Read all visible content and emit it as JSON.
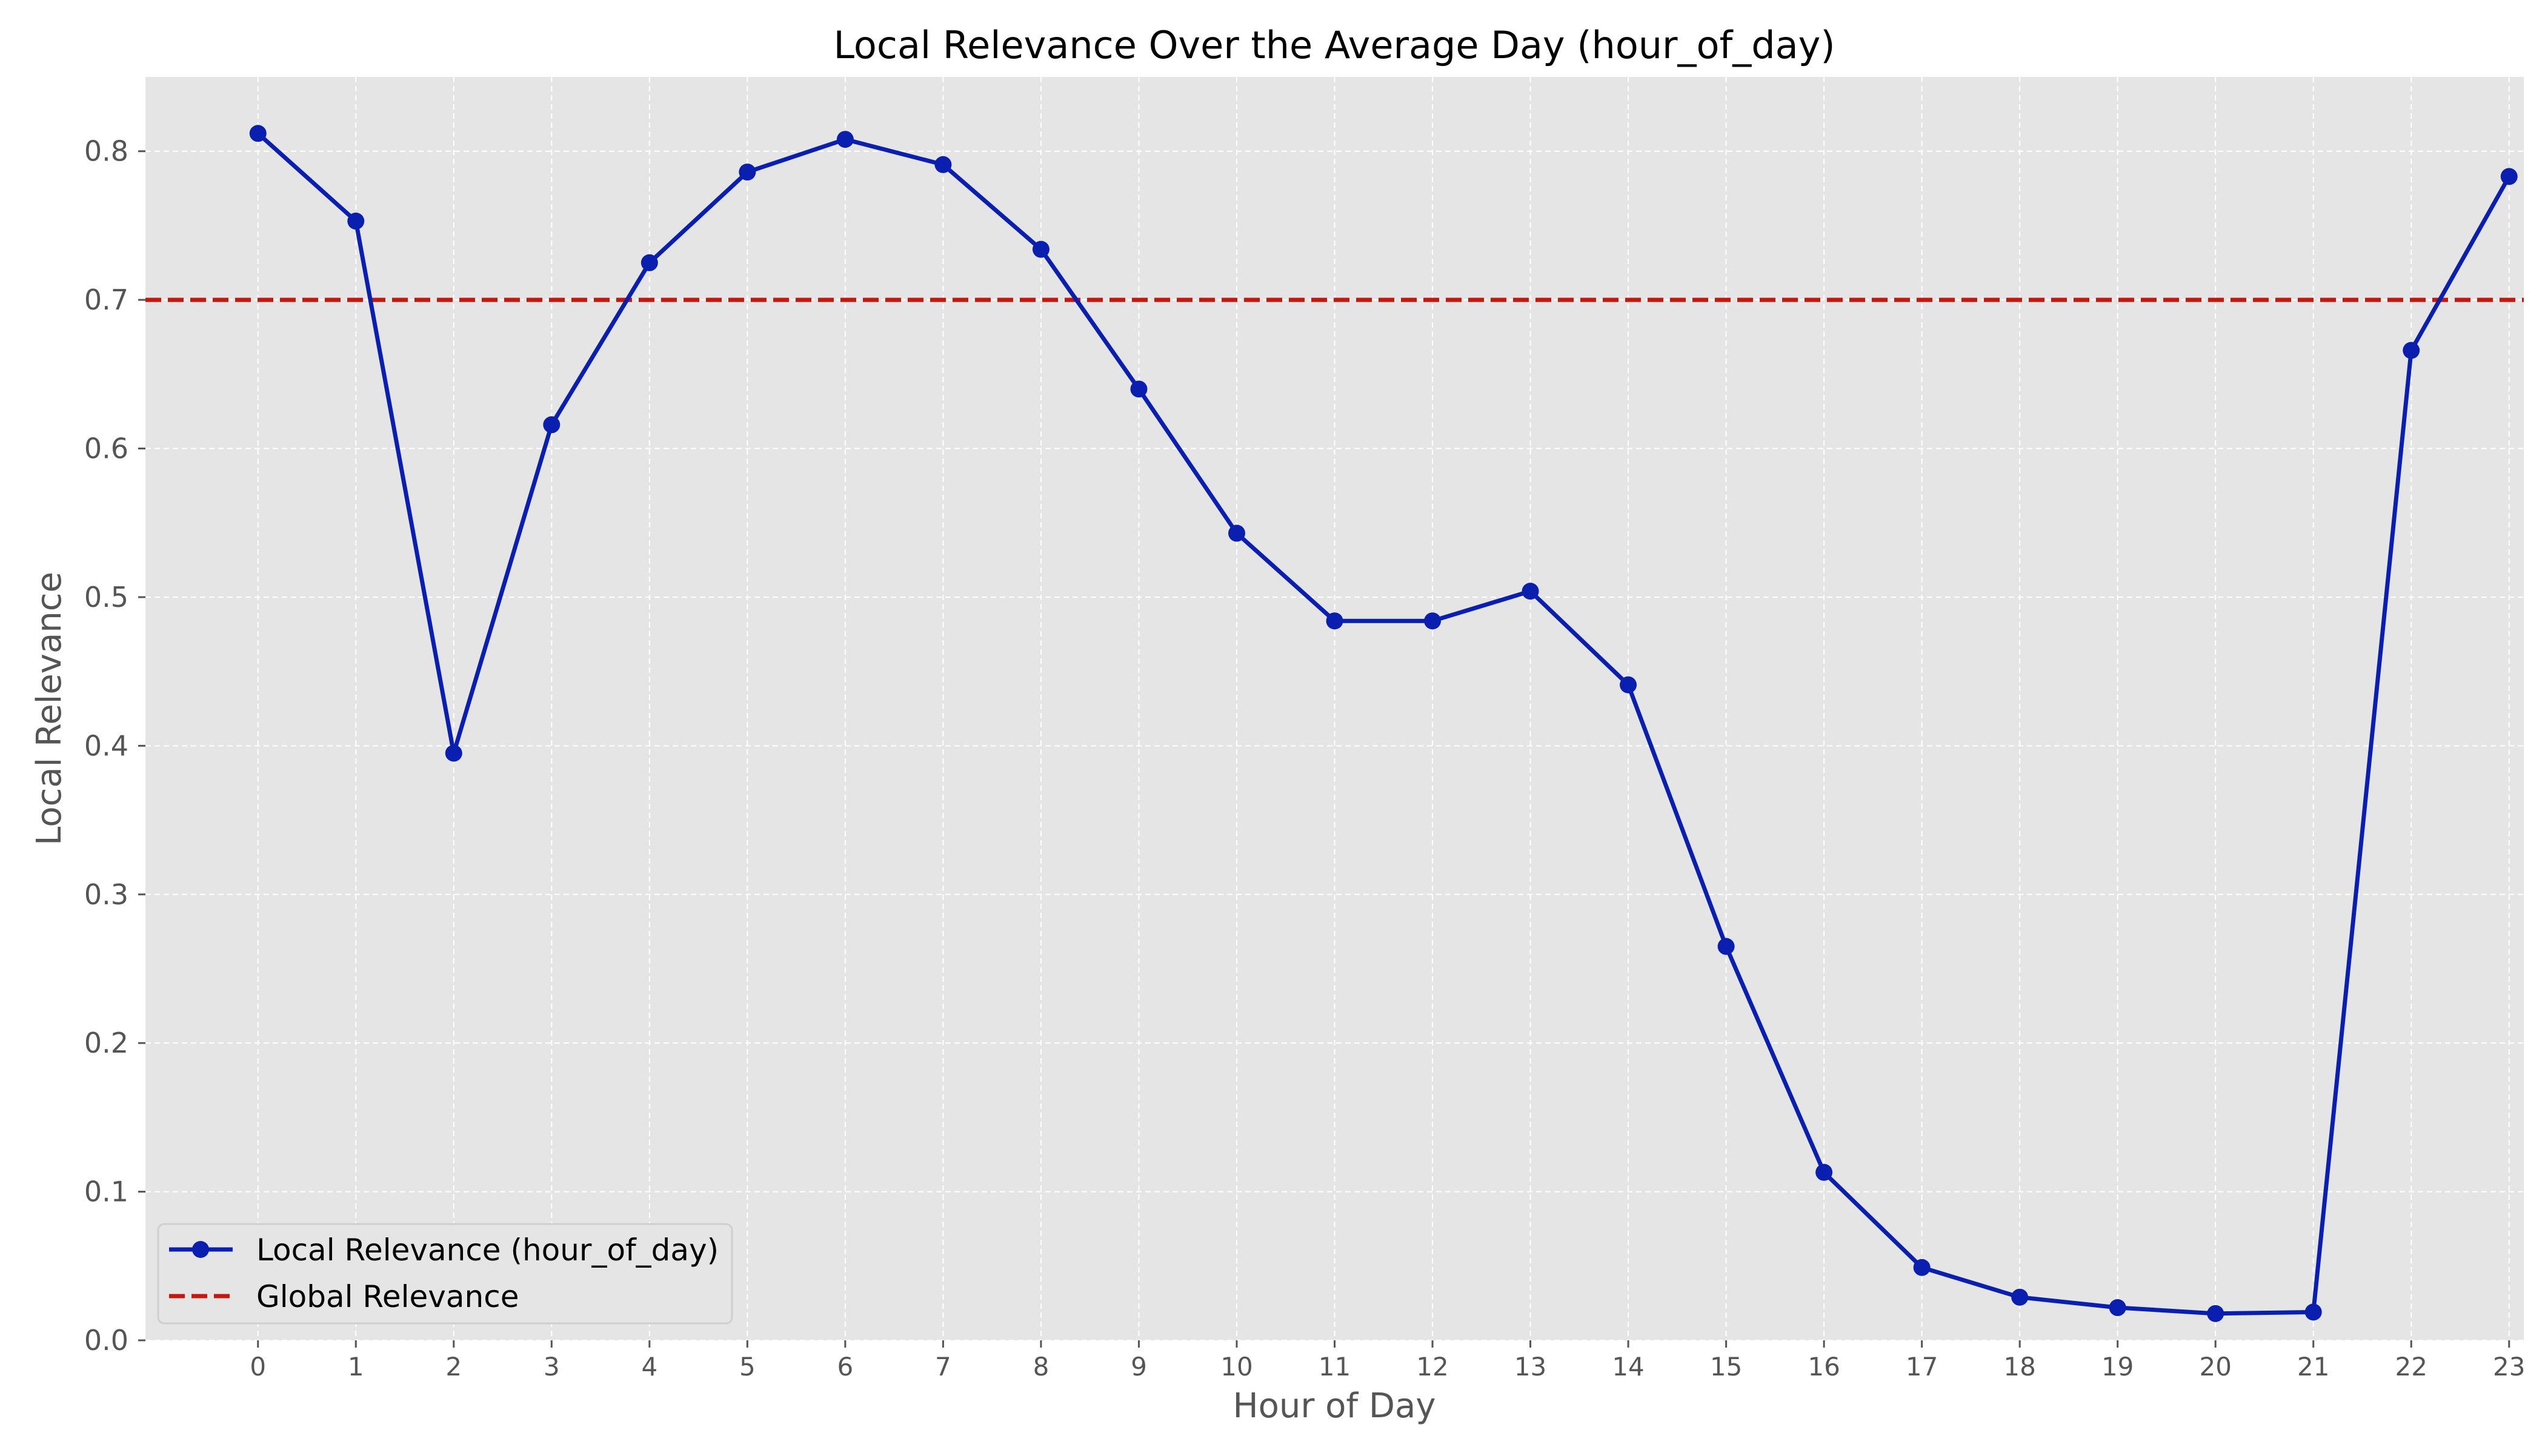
{
  "chart_data": {
    "type": "line",
    "title": "Local Relevance Over the Average Day (hour_of_day)",
    "xlabel": "Hour of Day",
    "ylabel": "Local Relevance",
    "x": [
      0,
      1,
      2,
      3,
      4,
      5,
      6,
      7,
      8,
      9,
      10,
      11,
      12,
      13,
      14,
      15,
      16,
      17,
      18,
      19,
      20,
      21,
      22,
      23
    ],
    "xticks": [
      "0",
      "1",
      "2",
      "3",
      "4",
      "5",
      "6",
      "7",
      "8",
      "9",
      "10",
      "11",
      "12",
      "13",
      "14",
      "15",
      "16",
      "17",
      "18",
      "19",
      "20",
      "21",
      "22",
      "23"
    ],
    "yticks": [
      "0.0",
      "0.1",
      "0.2",
      "0.3",
      "0.4",
      "0.5",
      "0.6",
      "0.7",
      "0.8"
    ],
    "xlim": [
      -1.15,
      23.15
    ],
    "ylim": [
      0.0,
      0.85
    ],
    "grid": true,
    "legend_position": "lower-left",
    "series": [
      {
        "name": "Local Relevance (hour_of_day)",
        "color": "#0a1fb0",
        "style": "line-with-markers",
        "values": [
          0.812,
          0.753,
          0.395,
          0.616,
          0.725,
          0.786,
          0.808,
          0.791,
          0.734,
          0.64,
          0.543,
          0.484,
          0.484,
          0.504,
          0.441,
          0.265,
          0.113,
          0.049,
          0.029,
          0.022,
          0.018,
          0.019,
          0.666,
          0.783
        ]
      }
    ],
    "reference_lines": [
      {
        "name": "Global Relevance",
        "y": 0.7,
        "color": "#c4170d",
        "style": "dashed"
      }
    ]
  },
  "colors": {
    "plot_background": "#e5e5e5",
    "grid": "#ffffff",
    "axis_text": "#555555",
    "title_text": "#000000"
  }
}
